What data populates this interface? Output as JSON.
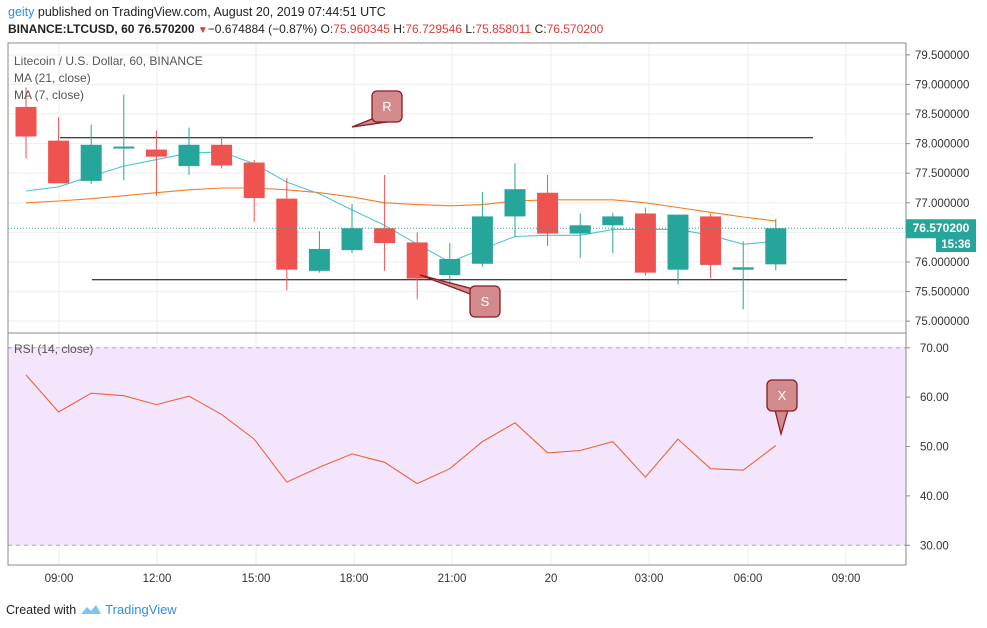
{
  "header": {
    "user": "geity",
    "published_text": "published on TradingView.com, August 20, 2019 07:44:51 UTC",
    "symbol_line": "BINANCE:LTCUSD, 60",
    "last_price": "76.570200",
    "change": "−0.674884 (−0.87%)",
    "o_label": "O:",
    "o_value": "75.960345",
    "h_label": "H:",
    "h_value": "76.729546",
    "l_label": "L:",
    "l_value": "75.858011",
    "c_label": "C:",
    "c_value": "76.570200"
  },
  "legend": {
    "title": "Litecoin / U.S. Dollar, 60, BINANCE",
    "ma21": "MA (21, close)",
    "ma7": "MA (7, close)",
    "rsi": "RSI (14, close)"
  },
  "price_badge": {
    "price": "76.570200",
    "countdown": "15:36"
  },
  "annotations": {
    "resistance": "R",
    "support": "S",
    "rsi_marker": "X"
  },
  "footer": {
    "created_with": "Created with",
    "brand": "TradingView"
  },
  "colors": {
    "up": "#26a69a",
    "down": "#ef5350",
    "ma21": "#f57c20",
    "ma7": "#4ec4d3",
    "rsi": "#f06239",
    "rsi_band": "#f3e5fb",
    "callout": "#d28a8d",
    "callout_border": "#8b1a22",
    "badge": "#26a69a"
  },
  "chart_data": [
    {
      "type": "candlestick",
      "title": "Litecoin / U.S. Dollar, 60, BINANCE",
      "x_tick_labels": [
        "09:00",
        "12:00",
        "15:00",
        "18:00",
        "21:00",
        "20",
        "03:00",
        "06:00",
        "09:00"
      ],
      "y_tick_labels": [
        "75.000000",
        "75.500000",
        "76.000000",
        "76.500000",
        "77.000000",
        "77.500000",
        "78.000000",
        "78.500000",
        "79.000000",
        "79.500000"
      ],
      "ylim": [
        74.8,
        79.7
      ],
      "candles": [
        {
          "o": 78.62,
          "h": 78.95,
          "l": 77.75,
          "c": 78.12
        },
        {
          "o": 78.05,
          "h": 78.45,
          "l": 77.35,
          "c": 77.33
        },
        {
          "o": 77.37,
          "h": 78.32,
          "l": 77.32,
          "c": 77.98
        },
        {
          "o": 77.93,
          "h": 78.83,
          "l": 77.38,
          "c": 77.95
        },
        {
          "o": 77.9,
          "h": 78.22,
          "l": 77.12,
          "c": 77.78
        },
        {
          "o": 77.62,
          "h": 78.27,
          "l": 77.47,
          "c": 77.98
        },
        {
          "o": 77.98,
          "h": 78.12,
          "l": 77.58,
          "c": 77.63
        },
        {
          "o": 77.68,
          "h": 77.72,
          "l": 76.68,
          "c": 77.08
        },
        {
          "o": 77.07,
          "h": 77.42,
          "l": 75.52,
          "c": 75.87
        },
        {
          "o": 75.85,
          "h": 76.52,
          "l": 75.82,
          "c": 76.22
        },
        {
          "o": 76.2,
          "h": 76.98,
          "l": 76.15,
          "c": 76.57
        },
        {
          "o": 76.57,
          "h": 77.47,
          "l": 75.85,
          "c": 76.32
        },
        {
          "o": 76.33,
          "h": 76.5,
          "l": 75.37,
          "c": 75.72
        },
        {
          "o": 75.78,
          "h": 76.32,
          "l": 75.6,
          "c": 76.05
        },
        {
          "o": 75.97,
          "h": 77.18,
          "l": 75.92,
          "c": 76.77
        },
        {
          "o": 76.77,
          "h": 77.67,
          "l": 76.42,
          "c": 77.23
        },
        {
          "o": 77.17,
          "h": 77.47,
          "l": 76.27,
          "c": 76.48
        },
        {
          "o": 76.48,
          "h": 76.82,
          "l": 76.07,
          "c": 76.62
        },
        {
          "o": 76.62,
          "h": 76.83,
          "l": 76.15,
          "c": 76.77
        },
        {
          "o": 76.82,
          "h": 76.92,
          "l": 75.77,
          "c": 75.82
        },
        {
          "o": 75.87,
          "h": 76.78,
          "l": 75.62,
          "c": 76.8
        },
        {
          "o": 76.77,
          "h": 76.82,
          "l": 75.73,
          "c": 75.95
        },
        {
          "o": 75.87,
          "h": 76.35,
          "l": 75.2,
          "c": 75.91
        },
        {
          "o": 75.96,
          "h": 76.73,
          "l": 75.86,
          "c": 76.57
        }
      ],
      "series": [
        {
          "name": "MA (21, close)",
          "values": [
            77.0,
            77.03,
            77.07,
            77.12,
            77.17,
            77.22,
            77.25,
            77.25,
            77.22,
            77.17,
            77.1,
            77.0,
            76.97,
            76.95,
            76.97,
            77.03,
            77.05,
            77.05,
            77.05,
            77.0,
            76.92,
            76.84,
            76.76,
            76.69
          ]
        },
        {
          "name": "MA (7, close)",
          "values": [
            77.2,
            77.27,
            77.45,
            77.62,
            77.73,
            77.84,
            77.86,
            77.66,
            77.35,
            77.15,
            76.88,
            76.62,
            76.3,
            76.0,
            76.22,
            76.43,
            76.45,
            76.45,
            76.55,
            76.55,
            76.55,
            76.45,
            76.3,
            76.35
          ]
        }
      ],
      "support": 75.7,
      "resistance": 78.1
    },
    {
      "type": "line",
      "title": "RSI (14, close)",
      "y_tick_labels": [
        "30.00",
        "40.00",
        "50.00",
        "60.00",
        "70.00"
      ],
      "ylim": [
        26,
        73
      ],
      "band": [
        30,
        70
      ],
      "series": [
        {
          "name": "RSI (14, close)",
          "values": [
            64.5,
            57,
            60.8,
            60.3,
            58.5,
            60.2,
            56.5,
            51.5,
            42.8,
            45.8,
            48.5,
            46.8,
            42.5,
            45.5,
            51,
            54.8,
            48.7,
            49.2,
            51,
            43.8,
            51.5,
            45.5,
            45.2,
            50.2
          ]
        }
      ]
    }
  ]
}
